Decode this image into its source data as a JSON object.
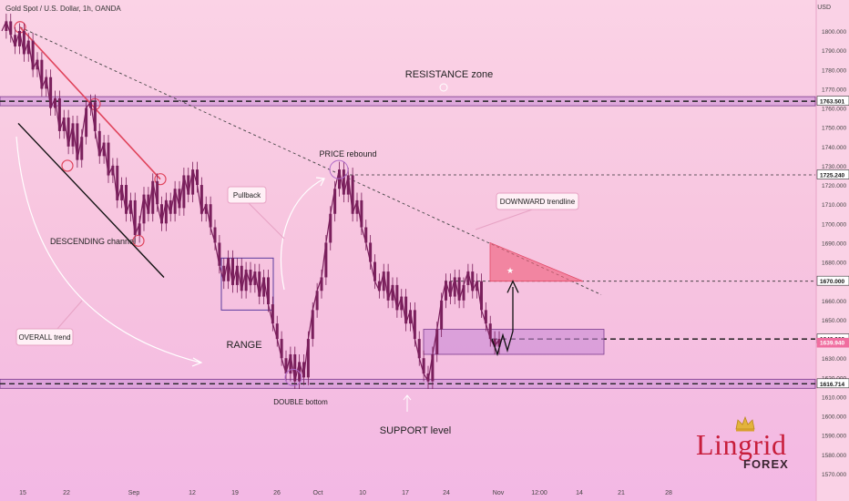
{
  "header": {
    "symbol_title": "Gold Spot / U.S. Dollar, 1h, OANDA",
    "currency": "USD"
  },
  "logo": {
    "name": "Lingrid",
    "sub": "FOREX"
  },
  "colors": {
    "candle": "#7a1f5c",
    "zone_fill": "#c98ad6",
    "zone_border": "#7b3a8c",
    "channel_red": "#e0445c",
    "channel_black": "#111111",
    "target_red": "#f06480",
    "axis_label_bg": "#ffffff"
  },
  "chart_data": {
    "type": "candlestick",
    "ylim": [
      1565,
      1815
    ],
    "y_ticks": [
      1570,
      1580,
      1590,
      1600,
      1610,
      1620,
      1630,
      1640,
      1650,
      1660,
      1670,
      1680,
      1690,
      1700,
      1710,
      1720,
      1730,
      1740,
      1750,
      1760,
      1770,
      1780,
      1790,
      1800
    ],
    "y_tick_labels": [
      "1570.000",
      "1580.000",
      "1590.000",
      "1600.000",
      "1610.000",
      "1620.000",
      "1630.000",
      "1640.000",
      "1650.000",
      "1660.000",
      "1670.000",
      "1680.000",
      "1690.000",
      "1700.000",
      "1710.000",
      "1720.000",
      "1730.000",
      "1740.000",
      "1750.000",
      "1760.000",
      "1770.000",
      "1780.000",
      "1790.000",
      "1800.000"
    ],
    "x_ticks": [
      "15",
      "22",
      "Sep",
      "12",
      "19",
      "26",
      "Oct",
      "10",
      "17",
      "24",
      "Nov",
      "12:00",
      "14",
      "21",
      "28"
    ],
    "price_labels": [
      {
        "value": 1763.501,
        "text": "1763.501",
        "style": "box"
      },
      {
        "value": 1725.24,
        "text": "1725.240",
        "style": "box"
      },
      {
        "value": 1670.0,
        "text": "1670.000",
        "style": "box"
      },
      {
        "value": 1640.0,
        "text": "1640.000",
        "style": "box"
      },
      {
        "value": 1639.94,
        "text": "1639.940",
        "style": "current"
      },
      {
        "value": 1616.714,
        "text": "1616.714",
        "style": "box"
      }
    ],
    "price_path": [
      [
        0,
        1800
      ],
      [
        1,
        1805
      ],
      [
        2,
        1798
      ],
      [
        3,
        1792
      ],
      [
        4,
        1800
      ],
      [
        5,
        1788
      ],
      [
        6,
        1795
      ],
      [
        7,
        1780
      ],
      [
        8,
        1785
      ],
      [
        9,
        1770
      ],
      [
        10,
        1776
      ],
      [
        11,
        1760
      ],
      [
        12,
        1765
      ],
      [
        13,
        1748
      ],
      [
        14,
        1755
      ],
      [
        15,
        1740
      ],
      [
        16,
        1752
      ],
      [
        17,
        1733
      ],
      [
        18,
        1745
      ],
      [
        19,
        1760
      ],
      [
        20,
        1763
      ],
      [
        21,
        1748
      ],
      [
        22,
        1735
      ],
      [
        23,
        1742
      ],
      [
        24,
        1725
      ],
      [
        25,
        1730
      ],
      [
        26,
        1712
      ],
      [
        27,
        1720
      ],
      [
        28,
        1705
      ],
      [
        29,
        1712
      ],
      [
        30,
        1694
      ],
      [
        31,
        1700
      ],
      [
        32,
        1715
      ],
      [
        33,
        1705
      ],
      [
        34,
        1722
      ],
      [
        35,
        1710
      ],
      [
        36,
        1700
      ],
      [
        37,
        1712
      ],
      [
        38,
        1705
      ],
      [
        39,
        1718
      ],
      [
        40,
        1708
      ],
      [
        41,
        1725
      ],
      [
        42,
        1715
      ],
      [
        43,
        1728
      ],
      [
        44,
        1720
      ],
      [
        45,
        1705
      ],
      [
        46,
        1710
      ],
      [
        47,
        1698
      ],
      [
        48,
        1690
      ],
      [
        49,
        1678
      ],
      [
        50,
        1670
      ],
      [
        51,
        1682
      ],
      [
        52,
        1668
      ],
      [
        53,
        1678
      ],
      [
        54,
        1665
      ],
      [
        55,
        1676
      ],
      [
        56,
        1668
      ],
      [
        57,
        1675
      ],
      [
        58,
        1662
      ],
      [
        59,
        1672
      ],
      [
        60,
        1658
      ],
      [
        61,
        1648
      ],
      [
        62,
        1640
      ],
      [
        63,
        1630
      ],
      [
        64,
        1622
      ],
      [
        65,
        1632
      ],
      [
        66,
        1618
      ],
      [
        67,
        1628
      ],
      [
        68,
        1620
      ],
      [
        69,
        1640
      ],
      [
        70,
        1655
      ],
      [
        71,
        1665
      ],
      [
        72,
        1672
      ],
      [
        73,
        1690
      ],
      [
        74,
        1705
      ],
      [
        75,
        1718
      ],
      [
        76,
        1728
      ],
      [
        77,
        1715
      ],
      [
        78,
        1725
      ],
      [
        79,
        1705
      ],
      [
        80,
        1712
      ],
      [
        81,
        1698
      ],
      [
        82,
        1690
      ],
      [
        83,
        1680
      ],
      [
        84,
        1670
      ],
      [
        85,
        1665
      ],
      [
        86,
        1675
      ],
      [
        87,
        1660
      ],
      [
        88,
        1668
      ],
      [
        89,
        1655
      ],
      [
        90,
        1662
      ],
      [
        91,
        1648
      ],
      [
        92,
        1655
      ],
      [
        93,
        1640
      ],
      [
        94,
        1630
      ],
      [
        95,
        1622
      ],
      [
        96,
        1618
      ],
      [
        97,
        1632
      ],
      [
        98,
        1645
      ],
      [
        99,
        1660
      ],
      [
        100,
        1670
      ],
      [
        101,
        1662
      ],
      [
        102,
        1672
      ],
      [
        103,
        1660
      ],
      [
        104,
        1668
      ],
      [
        105,
        1675
      ],
      [
        106,
        1665
      ],
      [
        107,
        1670
      ],
      [
        108,
        1655
      ],
      [
        109,
        1648
      ],
      [
        110,
        1640
      ],
      [
        111,
        1636
      ],
      [
        112,
        1640
      ]
    ],
    "levels": [
      {
        "name": "RESISTANCE zone",
        "value": 1763.5,
        "style": "zone"
      },
      {
        "name": "SUPPORT level",
        "value": 1616.7,
        "style": "zone"
      },
      {
        "name": "rebound level",
        "value": 1725.24,
        "style": "dotted"
      },
      {
        "name": "target level",
        "value": 1670.0,
        "style": "dotted"
      },
      {
        "name": "current level",
        "value": 1639.94,
        "style": "dashed"
      }
    ],
    "annotations": [
      {
        "text": "RESISTANCE zone",
        "kind": "plain"
      },
      {
        "text": "PRICE rebound",
        "kind": "plain"
      },
      {
        "text": "Pullback",
        "kind": "callout"
      },
      {
        "text": "DOWNWARD trendline",
        "kind": "callout"
      },
      {
        "text": "DESCENDING channel",
        "kind": "plain"
      },
      {
        "text": "OVERALL trend",
        "kind": "callout"
      },
      {
        "text": "RANGE",
        "kind": "plain"
      },
      {
        "text": "DOUBLE bottom",
        "kind": "plain"
      },
      {
        "text": "SUPPORT level",
        "kind": "plain"
      }
    ]
  }
}
